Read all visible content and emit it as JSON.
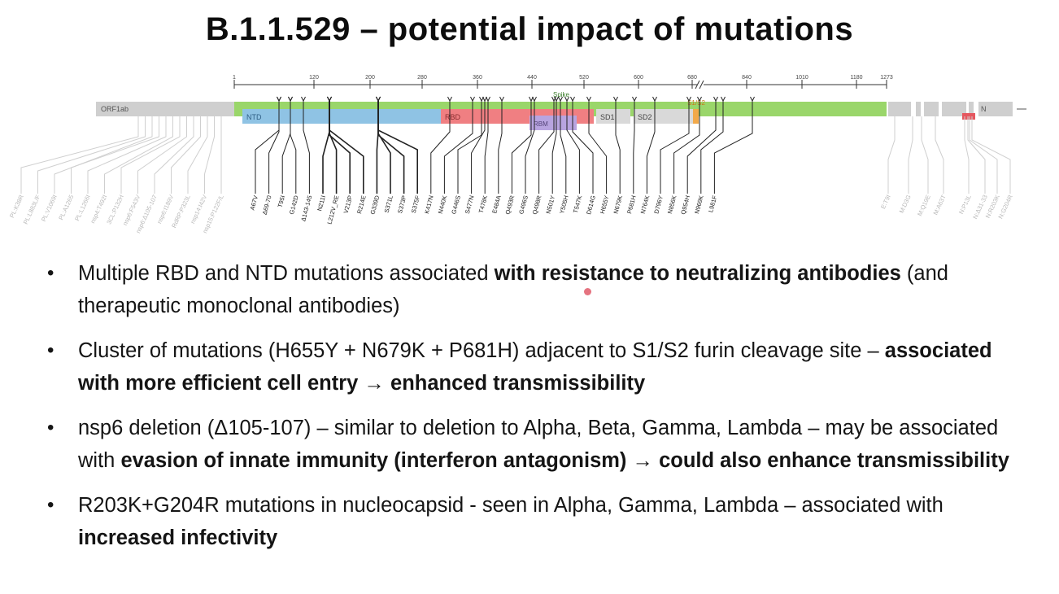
{
  "slide": {
    "title": "B.1.1.529 – potential impact of mutations"
  },
  "figure": {
    "scale_ticks": [
      "1",
      "120",
      "200",
      "280",
      "360",
      "440",
      "520",
      "600",
      "680",
      "840",
      "1010",
      "1180",
      "1273"
    ],
    "domains": {
      "orf1ab": "ORF1ab",
      "spike": "Spike",
      "ntd": "NTD",
      "rbd": "RBD",
      "rbm": "RBM",
      "sd1": "SD1",
      "sd2": "SD2",
      "s1s2": "S1/S2",
      "n": "N"
    },
    "colors": {
      "spike": "#9ad66a",
      "ntd": "#8fc3e4",
      "rbd": "#f07f82",
      "rbm": "#b8a4e0",
      "sd": "#d9d9d9",
      "s1s2": "#f2a94a",
      "grey_gene": "#cfcfcf",
      "n_red": "#e5575f"
    },
    "orf_mutations": [
      "PL:K38R",
      "PL:L883L/F",
      "PL:V1069I",
      "PL:A1265",
      "PL:L1266I",
      "nsp4:T492I",
      "3CL:P132H",
      "nsp6:F543V",
      "nsp6:Δ105-107",
      "nsp6:I189V",
      "RdRP:P323L",
      "nsp14:I42V",
      "nsp15:P122F/L"
    ],
    "spike_mutations": [
      "A67V",
      "Δ69-70",
      "T95I",
      "G142D",
      "Δ143-145",
      "N211I",
      "L212V_RE",
      "V213P",
      "R214E",
      "G339D",
      "S371L",
      "S373P",
      "S375F",
      "K417N",
      "N440K",
      "G446S",
      "S477N",
      "T478K",
      "E484A",
      "Q493R",
      "G496S",
      "Q498R",
      "N501Y",
      "Y505H",
      "T547K",
      "D614G",
      "H655Y",
      "N679K",
      "P681H",
      "N764K",
      "D796Y",
      "N856K",
      "Q954H",
      "N969K",
      "L981F"
    ],
    "other_mutations": [
      "E:T9I",
      "M:D3G",
      "M:Q19E",
      "M:A63T",
      "N:P13L",
      "N:Δ31-33",
      "N:R203K",
      "N:G204R"
    ]
  },
  "bullets": [
    {
      "parts": [
        {
          "text": "Multiple RBD and NTD mutations associated ",
          "bold": false
        },
        {
          "text": "with resistance to neutralizing antibodies",
          "bold": true
        },
        {
          "text": " (and therapeutic monoclonal antibodies)",
          "bold": false
        }
      ]
    },
    {
      "parts": [
        {
          "text": "Cluster of mutations (H655Y + N679K + P681H) adjacent to S1/S2 furin cleavage site – ",
          "bold": false
        },
        {
          "text": "associated with more efficient cell entry → enhanced transmissibility",
          "bold": true
        }
      ]
    },
    {
      "parts": [
        {
          "text": "nsp6 deletion (Δ105-107) – similar to deletion to Alpha, Beta, Gamma, Lambda – may be associated with ",
          "bold": false
        },
        {
          "text": "evasion of innate immunity (interferon antagonism) → could also enhance transmissibility",
          "bold": true
        }
      ]
    },
    {
      "parts": [
        {
          "text": "R203K+G204R mutations in nucleocapsid - seen in Alpha, Gamma, Lambda – associated with ",
          "bold": false
        },
        {
          "text": "increased infectivity",
          "bold": true
        }
      ]
    }
  ]
}
